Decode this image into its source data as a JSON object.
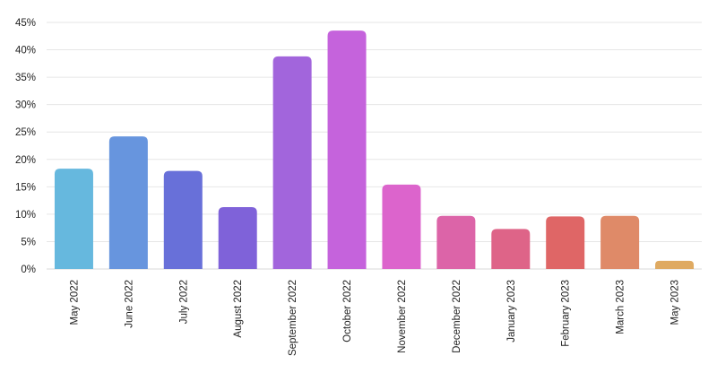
{
  "chart_data": {
    "type": "bar",
    "title": "",
    "xlabel": "",
    "ylabel": "",
    "ylim": [
      0,
      45
    ],
    "yticks": [
      "0%",
      "5%",
      "10%",
      "15%",
      "20%",
      "25%",
      "30%",
      "35%",
      "40%",
      "45%"
    ],
    "grid": true,
    "categories": [
      "May 2022",
      "June 2022",
      "July 2022",
      "August 2022",
      "September 2022",
      "October 2022",
      "November 2022",
      "December 2022",
      "January 2023",
      "February 2023",
      "March 2023",
      "May 2023"
    ],
    "values": [
      18.3,
      24.2,
      17.9,
      11.3,
      38.8,
      43.5,
      15.4,
      9.7,
      7.3,
      9.6,
      9.7,
      1.5
    ],
    "colors": [
      "#66b8de",
      "#6795de",
      "#6870d9",
      "#7f62d9",
      "#a265dc",
      "#c563dc",
      "#dc64cc",
      "#dc64a8",
      "#de6488",
      "#df6666",
      "#df8a68",
      "#dfaa62"
    ]
  }
}
